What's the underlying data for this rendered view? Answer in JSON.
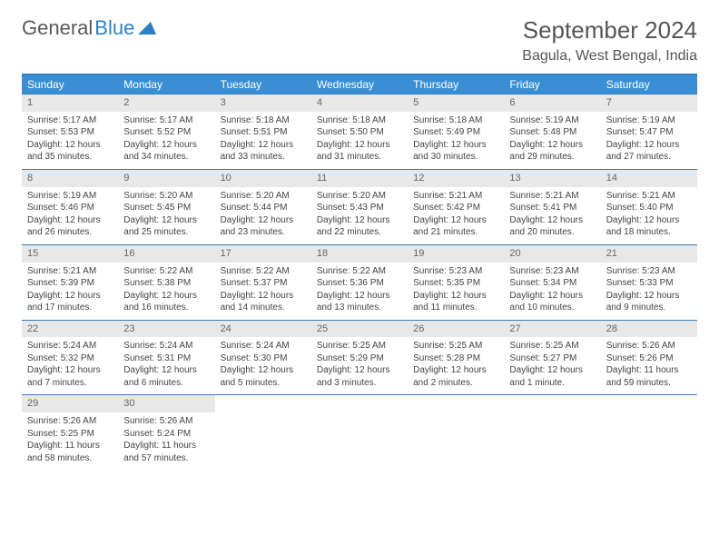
{
  "logo": {
    "text1": "General",
    "text2": "Blue"
  },
  "title": "September 2024",
  "location": "Bagula, West Bengal, India",
  "colors": {
    "header_bg": "#3a8fd4",
    "border": "#2e7fc1",
    "daynum_bg": "#e8e8e8",
    "text": "#444444",
    "title_text": "#555555"
  },
  "typography": {
    "title_fontsize": 26,
    "location_fontsize": 16,
    "weekday_fontsize": 12,
    "body_fontsize": 10
  },
  "layout": {
    "columns": 7,
    "rows": 5
  },
  "weekdays": [
    "Sunday",
    "Monday",
    "Tuesday",
    "Wednesday",
    "Thursday",
    "Friday",
    "Saturday"
  ],
  "days": [
    {
      "n": "1",
      "sunrise": "Sunrise: 5:17 AM",
      "sunset": "Sunset: 5:53 PM",
      "daylight": "Daylight: 12 hours and 35 minutes."
    },
    {
      "n": "2",
      "sunrise": "Sunrise: 5:17 AM",
      "sunset": "Sunset: 5:52 PM",
      "daylight": "Daylight: 12 hours and 34 minutes."
    },
    {
      "n": "3",
      "sunrise": "Sunrise: 5:18 AM",
      "sunset": "Sunset: 5:51 PM",
      "daylight": "Daylight: 12 hours and 33 minutes."
    },
    {
      "n": "4",
      "sunrise": "Sunrise: 5:18 AM",
      "sunset": "Sunset: 5:50 PM",
      "daylight": "Daylight: 12 hours and 31 minutes."
    },
    {
      "n": "5",
      "sunrise": "Sunrise: 5:18 AM",
      "sunset": "Sunset: 5:49 PM",
      "daylight": "Daylight: 12 hours and 30 minutes."
    },
    {
      "n": "6",
      "sunrise": "Sunrise: 5:19 AM",
      "sunset": "Sunset: 5:48 PM",
      "daylight": "Daylight: 12 hours and 29 minutes."
    },
    {
      "n": "7",
      "sunrise": "Sunrise: 5:19 AM",
      "sunset": "Sunset: 5:47 PM",
      "daylight": "Daylight: 12 hours and 27 minutes."
    },
    {
      "n": "8",
      "sunrise": "Sunrise: 5:19 AM",
      "sunset": "Sunset: 5:46 PM",
      "daylight": "Daylight: 12 hours and 26 minutes."
    },
    {
      "n": "9",
      "sunrise": "Sunrise: 5:20 AM",
      "sunset": "Sunset: 5:45 PM",
      "daylight": "Daylight: 12 hours and 25 minutes."
    },
    {
      "n": "10",
      "sunrise": "Sunrise: 5:20 AM",
      "sunset": "Sunset: 5:44 PM",
      "daylight": "Daylight: 12 hours and 23 minutes."
    },
    {
      "n": "11",
      "sunrise": "Sunrise: 5:20 AM",
      "sunset": "Sunset: 5:43 PM",
      "daylight": "Daylight: 12 hours and 22 minutes."
    },
    {
      "n": "12",
      "sunrise": "Sunrise: 5:21 AM",
      "sunset": "Sunset: 5:42 PM",
      "daylight": "Daylight: 12 hours and 21 minutes."
    },
    {
      "n": "13",
      "sunrise": "Sunrise: 5:21 AM",
      "sunset": "Sunset: 5:41 PM",
      "daylight": "Daylight: 12 hours and 20 minutes."
    },
    {
      "n": "14",
      "sunrise": "Sunrise: 5:21 AM",
      "sunset": "Sunset: 5:40 PM",
      "daylight": "Daylight: 12 hours and 18 minutes."
    },
    {
      "n": "15",
      "sunrise": "Sunrise: 5:21 AM",
      "sunset": "Sunset: 5:39 PM",
      "daylight": "Daylight: 12 hours and 17 minutes."
    },
    {
      "n": "16",
      "sunrise": "Sunrise: 5:22 AM",
      "sunset": "Sunset: 5:38 PM",
      "daylight": "Daylight: 12 hours and 16 minutes."
    },
    {
      "n": "17",
      "sunrise": "Sunrise: 5:22 AM",
      "sunset": "Sunset: 5:37 PM",
      "daylight": "Daylight: 12 hours and 14 minutes."
    },
    {
      "n": "18",
      "sunrise": "Sunrise: 5:22 AM",
      "sunset": "Sunset: 5:36 PM",
      "daylight": "Daylight: 12 hours and 13 minutes."
    },
    {
      "n": "19",
      "sunrise": "Sunrise: 5:23 AM",
      "sunset": "Sunset: 5:35 PM",
      "daylight": "Daylight: 12 hours and 11 minutes."
    },
    {
      "n": "20",
      "sunrise": "Sunrise: 5:23 AM",
      "sunset": "Sunset: 5:34 PM",
      "daylight": "Daylight: 12 hours and 10 minutes."
    },
    {
      "n": "21",
      "sunrise": "Sunrise: 5:23 AM",
      "sunset": "Sunset: 5:33 PM",
      "daylight": "Daylight: 12 hours and 9 minutes."
    },
    {
      "n": "22",
      "sunrise": "Sunrise: 5:24 AM",
      "sunset": "Sunset: 5:32 PM",
      "daylight": "Daylight: 12 hours and 7 minutes."
    },
    {
      "n": "23",
      "sunrise": "Sunrise: 5:24 AM",
      "sunset": "Sunset: 5:31 PM",
      "daylight": "Daylight: 12 hours and 6 minutes."
    },
    {
      "n": "24",
      "sunrise": "Sunrise: 5:24 AM",
      "sunset": "Sunset: 5:30 PM",
      "daylight": "Daylight: 12 hours and 5 minutes."
    },
    {
      "n": "25",
      "sunrise": "Sunrise: 5:25 AM",
      "sunset": "Sunset: 5:29 PM",
      "daylight": "Daylight: 12 hours and 3 minutes."
    },
    {
      "n": "26",
      "sunrise": "Sunrise: 5:25 AM",
      "sunset": "Sunset: 5:28 PM",
      "daylight": "Daylight: 12 hours and 2 minutes."
    },
    {
      "n": "27",
      "sunrise": "Sunrise: 5:25 AM",
      "sunset": "Sunset: 5:27 PM",
      "daylight": "Daylight: 12 hours and 1 minute."
    },
    {
      "n": "28",
      "sunrise": "Sunrise: 5:26 AM",
      "sunset": "Sunset: 5:26 PM",
      "daylight": "Daylight: 11 hours and 59 minutes."
    },
    {
      "n": "29",
      "sunrise": "Sunrise: 5:26 AM",
      "sunset": "Sunset: 5:25 PM",
      "daylight": "Daylight: 11 hours and 58 minutes."
    },
    {
      "n": "30",
      "sunrise": "Sunrise: 5:26 AM",
      "sunset": "Sunset: 5:24 PM",
      "daylight": "Daylight: 11 hours and 57 minutes."
    }
  ]
}
